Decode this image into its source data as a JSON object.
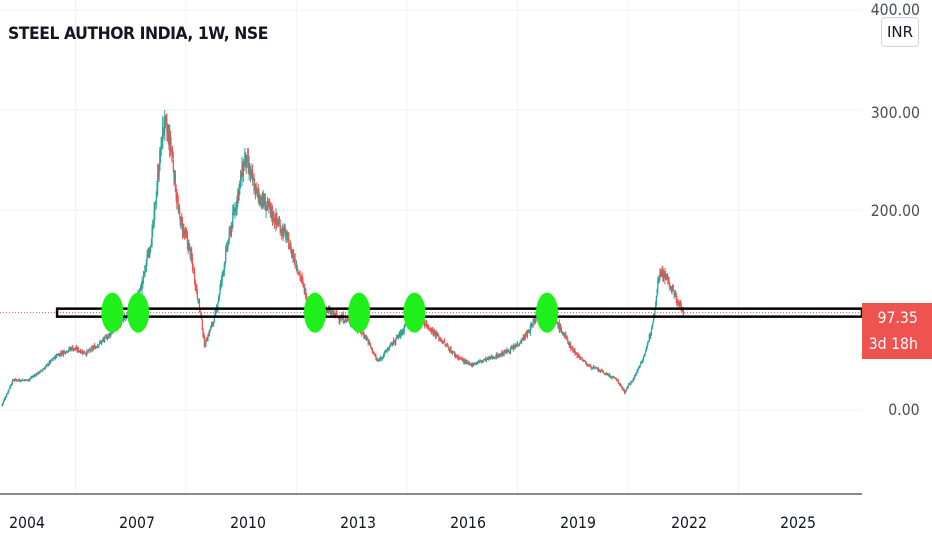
{
  "header": {
    "title": "STEEL AUTHOR INDIA, 1W, NSE"
  },
  "price_scale": {
    "currency": "INR"
  },
  "last_price": {
    "value": "97.35",
    "countdown": "3d 18h",
    "color": "#ef5350"
  },
  "colors": {
    "up": "#26a69a",
    "down": "#ef5350",
    "marker": "#1ff01b",
    "grid": "#f0f3fa"
  },
  "chart_data": {
    "type": "candlestick",
    "title": "STEEL AUTHOR INDIA, 1W, NSE",
    "y_ticks": [
      "400.00",
      "300.00",
      "200.00",
      "0.00"
    ],
    "x_ticks": [
      "2004",
      "2007",
      "2010",
      "2013",
      "2016",
      "2019",
      "2022",
      "2025"
    ],
    "xlim": [
      2003.45,
      2026.85
    ],
    "ylim": [
      -80,
      405
    ],
    "series": [
      {
        "price_path": [
          [
            2003.5,
            5
          ],
          [
            2003.8,
            30
          ],
          [
            2004.2,
            30
          ],
          [
            2004.6,
            40
          ],
          [
            2005.0,
            55
          ],
          [
            2005.4,
            62
          ],
          [
            2005.8,
            57
          ],
          [
            2006.2,
            68
          ],
          [
            2006.6,
            82
          ],
          [
            2007.0,
            98
          ],
          [
            2007.3,
            125
          ],
          [
            2007.6,
            180
          ],
          [
            2007.75,
            240
          ],
          [
            2007.9,
            288
          ],
          [
            2008.1,
            262
          ],
          [
            2008.3,
            195
          ],
          [
            2008.6,
            160
          ],
          [
            2008.9,
            95
          ],
          [
            2009.0,
            65
          ],
          [
            2009.3,
            95
          ],
          [
            2009.6,
            160
          ],
          [
            2009.9,
            215
          ],
          [
            2010.1,
            252
          ],
          [
            2010.4,
            218
          ],
          [
            2010.8,
            198
          ],
          [
            2011.2,
            175
          ],
          [
            2011.5,
            145
          ],
          [
            2011.8,
            110
          ],
          [
            2012.0,
            95
          ],
          [
            2012.3,
            100
          ],
          [
            2012.7,
            92
          ],
          [
            2013.0,
            88
          ],
          [
            2013.4,
            72
          ],
          [
            2013.7,
            48
          ],
          [
            2014.0,
            62
          ],
          [
            2014.4,
            80
          ],
          [
            2014.6,
            108
          ],
          [
            2014.9,
            90
          ],
          [
            2015.3,
            75
          ],
          [
            2015.8,
            55
          ],
          [
            2016.2,
            45
          ],
          [
            2016.6,
            50
          ],
          [
            2017.0,
            55
          ],
          [
            2017.4,
            62
          ],
          [
            2017.8,
            78
          ],
          [
            2018.2,
            108
          ],
          [
            2018.6,
            85
          ],
          [
            2019.0,
            60
          ],
          [
            2019.4,
            45
          ],
          [
            2019.8,
            38
          ],
          [
            2020.2,
            30
          ],
          [
            2020.4,
            18
          ],
          [
            2020.7,
            35
          ],
          [
            2021.0,
            60
          ],
          [
            2021.2,
            95
          ],
          [
            2021.35,
            140
          ],
          [
            2021.5,
            135
          ],
          [
            2021.8,
            112
          ],
          [
            2022.0,
            97.35
          ]
        ]
      }
    ],
    "horizontal_level": 97.35,
    "touch_markers": [
      2006.5,
      2007.2,
      2012.0,
      2013.2,
      2014.7,
      2018.3
    ]
  }
}
